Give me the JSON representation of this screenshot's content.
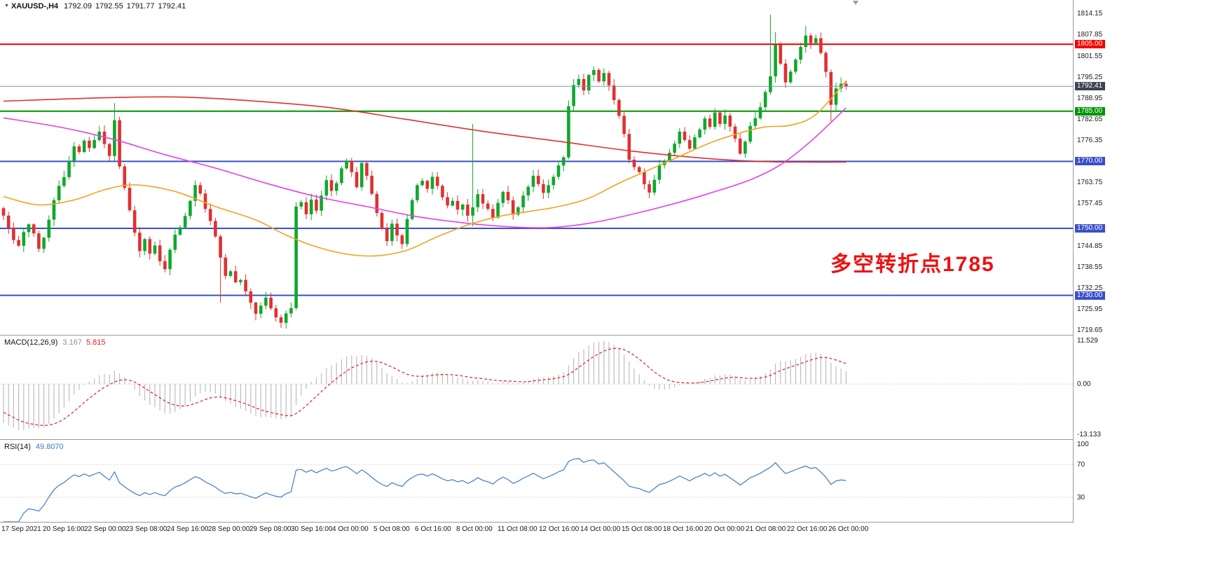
{
  "header": {
    "marker": "▼",
    "symbol": "XAUUSD-,H4",
    "open": "1792.09",
    "high": "1792.55",
    "low": "1791.77",
    "close": "1792.41"
  },
  "annotation": {
    "text": "多空转折点1785",
    "color": "#ee1111"
  },
  "chart_data": {
    "type": "candlestick",
    "instrument": "XAUUSD",
    "timeframe": "H4",
    "grid": "off",
    "y_range": {
      "top": 1818.2,
      "bottom": 1718.2
    },
    "price_axis_ticks": [
      "1814.15",
      "1807.85",
      "1801.55",
      "1795.25",
      "1788.95",
      "1782.65",
      "1776.35",
      "1770.05",
      "1763.75",
      "1757.45",
      "1751.15",
      "1744.85",
      "1738.55",
      "1732.25",
      "1725.95",
      "1719.65"
    ],
    "levels": [
      {
        "price": 1805.0,
        "label": "1805.00",
        "color": "#f50000",
        "width": 2
      },
      {
        "price": 1785.0,
        "label": "1785.00",
        "color": "#009600",
        "width": 2
      },
      {
        "price": 1770.0,
        "label": "1770.00",
        "color": "#3a50c8",
        "width": 2
      },
      {
        "price": 1750.0,
        "label": "1750.00",
        "color": "#3a50c8",
        "width": 2
      },
      {
        "price": 1730.0,
        "label": "1730.00",
        "color": "#3a50c8",
        "width": 2
      }
    ],
    "bid_line": {
      "price": 1792.41,
      "label": "1792.41",
      "line_color": "#7b93c0",
      "badge_color": "#3d4450"
    },
    "candle_colors": {
      "up": "#0ea82c",
      "down": "#e03030"
    },
    "candles": {
      "first_open": 1756.0,
      "warmup_closes": [
        1792.5,
        1790.0,
        1787.5,
        1785.0,
        1782.0,
        1779.5,
        1777.0,
        1774.0,
        1771.0,
        1768.5,
        1765.5,
        1763.0,
        1760.5,
        1758.0,
        1756.0
      ],
      "closes": [
        1753.8,
        1750.2,
        1746.5,
        1744.8,
        1748.9,
        1751.2,
        1748.5,
        1743.9,
        1747.2,
        1752.6,
        1758.4,
        1762.7,
        1765.3,
        1770.1,
        1774.5,
        1772.8,
        1776.2,
        1774.0,
        1776.4,
        1778.9,
        1775.2,
        1771.6,
        1782.3,
        1768.5,
        1762.1,
        1755.4,
        1748.7,
        1743.2,
        1746.8,
        1742.5,
        1744.9,
        1740.2,
        1737.8,
        1743.6,
        1748.1,
        1750.3,
        1753.7,
        1758.2,
        1762.9,
        1760.4,
        1755.8,
        1752.2,
        1747.6,
        1741.3,
        1735.8,
        1737.2,
        1733.9,
        1734.6,
        1731.2,
        1727.8,
        1724.5,
        1726.9,
        1729.3,
        1726.1,
        1723.4,
        1721.8,
        1724.6,
        1726.2,
        1756.5,
        1757.8,
        1754.2,
        1758.6,
        1755.3,
        1759.8,
        1764.4,
        1761.2,
        1763.5,
        1767.9,
        1770.2,
        1766.8,
        1762.3,
        1769.5,
        1765.7,
        1760.3,
        1754.6,
        1749.8,
        1746.2,
        1751.4,
        1747.9,
        1745.3,
        1752.8,
        1758.4,
        1762.9,
        1764.2,
        1761.8,
        1765.4,
        1762.7,
        1759.3,
        1756.8,
        1758.2,
        1755.6,
        1757.1,
        1753.8,
        1756.3,
        1760.2,
        1757.4,
        1755.8,
        1753.2,
        1757.6,
        1760.9,
        1758.4,
        1754.1,
        1756.3,
        1759.8,
        1762.4,
        1765.7,
        1763.2,
        1760.6,
        1762.9,
        1765.4,
        1768.8,
        1771.2,
        1786.5,
        1792.8,
        1794.6,
        1791.2,
        1795.8,
        1797.3,
        1793.9,
        1796.4,
        1792.7,
        1788.3,
        1783.6,
        1778.2,
        1770.5,
        1768.3,
        1766.8,
        1763.2,
        1760.7,
        1764.5,
        1768.9,
        1770.2,
        1772.6,
        1775.3,
        1778.9,
        1776.4,
        1773.8,
        1777.2,
        1779.5,
        1782.8,
        1780.3,
        1784.6,
        1781.2,
        1783.7,
        1780.4,
        1776.8,
        1772.3,
        1775.9,
        1780.6,
        1782.9,
        1786.2,
        1790.7,
        1795.4,
        1804.8,
        1799.2,
        1793.6,
        1796.8,
        1800.4,
        1804.2,
        1807.6,
        1805.3,
        1806.8,
        1802.4,
        1796.7,
        1786.9,
        1791.8,
        1793.2,
        1792.41
      ],
      "wick_overrides": {
        "22": {
          "h": 1787.4
        },
        "43": {
          "l": 1727.8
        },
        "50": {
          "l": 1722.5
        },
        "55": {
          "l": 1720.3
        },
        "58": {
          "l": 1725.6
        },
        "93": {
          "h": 1781.2,
          "l": 1750.6
        },
        "112": {
          "h": 1788.2
        },
        "113": {
          "h": 1794.6
        },
        "152": {
          "h": 1813.8
        },
        "153": {
          "h": 1808.6
        },
        "159": {
          "h": 1810.4
        },
        "164": {
          "l": 1781.9
        }
      }
    },
    "moving_averages": [
      {
        "name": "ma-slow-red-line",
        "color": "#e03030",
        "width": 1.6,
        "points": [
          [
            0,
            1788.0
          ],
          [
            20,
            1789.0
          ],
          [
            35,
            1789.2
          ],
          [
            50,
            1788.0
          ],
          [
            65,
            1786.0
          ],
          [
            80,
            1782.5
          ],
          [
            95,
            1779.0
          ],
          [
            110,
            1776.0
          ],
          [
            125,
            1773.0
          ],
          [
            140,
            1770.8
          ],
          [
            152,
            1769.9
          ],
          [
            167,
            1769.8
          ]
        ]
      },
      {
        "name": "ma-medium-magenta-line",
        "color": "#e540e5",
        "width": 1.6,
        "points": [
          [
            0,
            1783.0
          ],
          [
            12,
            1780.0
          ],
          [
            22,
            1776.5
          ],
          [
            32,
            1772.0
          ],
          [
            42,
            1768.0
          ],
          [
            52,
            1763.5
          ],
          [
            62,
            1759.5
          ],
          [
            72,
            1756.5
          ],
          [
            82,
            1753.5
          ],
          [
            92,
            1751.5
          ],
          [
            100,
            1750.5
          ],
          [
            108,
            1750.2
          ],
          [
            116,
            1751.5
          ],
          [
            124,
            1754.0
          ],
          [
            132,
            1757.0
          ],
          [
            140,
            1760.5
          ],
          [
            148,
            1764.5
          ],
          [
            154,
            1769.0
          ],
          [
            160,
            1776.0
          ],
          [
            167,
            1786.0
          ]
        ]
      },
      {
        "name": "ma-fast-orange-line",
        "color": "#f0a41e",
        "width": 1.6,
        "points": [
          [
            0,
            1759.5
          ],
          [
            7,
            1757.0
          ],
          [
            14,
            1758.5
          ],
          [
            20,
            1761.5
          ],
          [
            26,
            1763.0
          ],
          [
            34,
            1761.0
          ],
          [
            42,
            1756.5
          ],
          [
            50,
            1752.5
          ],
          [
            56,
            1748.0
          ],
          [
            62,
            1744.5
          ],
          [
            68,
            1742.3
          ],
          [
            74,
            1741.8
          ],
          [
            80,
            1743.5
          ],
          [
            86,
            1747.5
          ],
          [
            92,
            1751.0
          ],
          [
            98,
            1753.5
          ],
          [
            104,
            1755.0
          ],
          [
            110,
            1756.5
          ],
          [
            116,
            1759.0
          ],
          [
            122,
            1763.5
          ],
          [
            128,
            1767.5
          ],
          [
            134,
            1771.5
          ],
          [
            140,
            1775.5
          ],
          [
            146,
            1778.5
          ],
          [
            151,
            1780.3
          ],
          [
            156,
            1780.8
          ],
          [
            161,
            1784.0
          ],
          [
            167,
            1794.0
          ]
        ]
      }
    ],
    "macd": {
      "label": "MACD(12,26,9)",
      "value_main": "3.167",
      "value_signal": "5.815",
      "fast": 12,
      "slow": 26,
      "signal": 9,
      "range": {
        "max": 11.529,
        "min": -13.133
      },
      "axis_labels": [
        "11.529",
        "0.00",
        "-13.133"
      ],
      "histogram_color": "#bdbdbd",
      "signal_color": "#e02020"
    },
    "rsi": {
      "label": "RSI(14)",
      "value": "49.8070",
      "period": 14,
      "levels": [
        70,
        30
      ],
      "axis_labels": [
        "100",
        "70",
        "30"
      ],
      "range": [
        0,
        100
      ],
      "line_color": "#3f7cc4"
    },
    "time_axis": [
      "17 Sep 2021",
      "20 Sep 16:00",
      "22 Sep 00:00",
      "23 Sep 08:00",
      "24 Sep 16:00",
      "28 Sep 00:00",
      "29 Sep 08:00",
      "30 Sep 16:00",
      "4 Oct 00:00",
      "5 Oct 08:00",
      "6 Oct 16:00",
      "8 Oct 00:00",
      "11 Oct 08:00",
      "12 Oct 16:00",
      "14 Oct 00:00",
      "15 Oct 08:00",
      "18 Oct 16:00",
      "20 Oct 00:00",
      "21 Oct 08:00",
      "22 Oct 16:00",
      "26 Oct 00:00"
    ]
  }
}
